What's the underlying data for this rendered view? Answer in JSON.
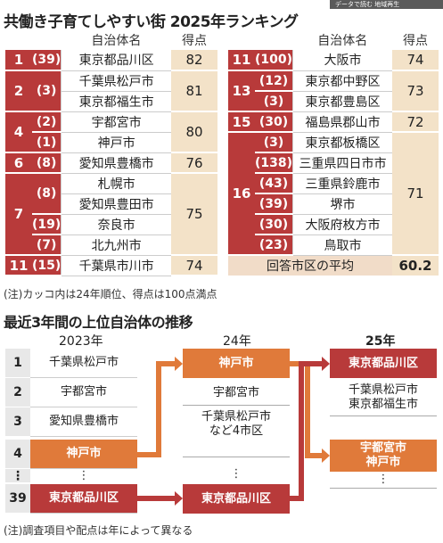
{
  "topbar": "データで読む 地域再生",
  "title": "共働き子育てしやすい街 2025年ランキング",
  "header": {
    "name": "自治体名",
    "score": "得点"
  },
  "left": [
    {
      "rank": "1",
      "prev": "(39)",
      "name": "東京都品川区",
      "score": "82"
    },
    {
      "rank": "2",
      "prev": "(3)",
      "name": "千葉県松戸市",
      "score": "81"
    },
    {
      "rank": "",
      "prev": "",
      "name": "東京都福生市",
      "score": ""
    },
    {
      "rank": "4",
      "prev": "(2)",
      "name": "宇都宮市",
      "score": "80"
    },
    {
      "rank": "",
      "prev": "(1)",
      "name": "神戸市",
      "score": ""
    },
    {
      "rank": "6",
      "prev": "(8)",
      "name": "愛知県豊橋市",
      "score": "76"
    },
    {
      "rank": "7",
      "prev": "(8)",
      "name": "札幌市",
      "score": "75"
    },
    {
      "rank": "",
      "prev": "",
      "name": "愛知県豊田市",
      "score": ""
    },
    {
      "rank": "",
      "prev": "(19)",
      "name": "奈良市",
      "score": ""
    },
    {
      "rank": "",
      "prev": "(7)",
      "name": "北九州市",
      "score": ""
    },
    {
      "rank": "11",
      "prev": "(15)",
      "name": "千葉県市川市",
      "score": "74"
    }
  ],
  "right": [
    {
      "rank": "11",
      "prev": "(100)",
      "name": "大阪市",
      "score": "74"
    },
    {
      "rank": "13",
      "prev": "(12)",
      "name": "東京都中野区",
      "score": "73"
    },
    {
      "rank": "",
      "prev": "(3)",
      "name": "東京都豊島区",
      "score": ""
    },
    {
      "rank": "15",
      "prev": "(30)",
      "name": "福島県郡山市",
      "score": "72"
    },
    {
      "rank": "16",
      "prev": "(3)",
      "name": "東京都板橋区",
      "score": "71"
    },
    {
      "rank": "",
      "prev": "(138)",
      "name": "三重県四日市市",
      "score": ""
    },
    {
      "rank": "",
      "prev": "(43)",
      "name": "三重県鈴鹿市",
      "score": ""
    },
    {
      "rank": "",
      "prev": "(39)",
      "name": "堺市",
      "score": ""
    },
    {
      "rank": "",
      "prev": "(30)",
      "name": "大阪府枚方市",
      "score": ""
    },
    {
      "rank": "",
      "prev": "(23)",
      "name": "鳥取市",
      "score": ""
    }
  ],
  "avg": {
    "label": "回答市区の平均",
    "value": "60.2"
  },
  "note1": "(注)カッコ内は24年順位、得点は100点満点",
  "section2": "最近3年間の上位自治体の推移",
  "years": {
    "y1": "2023年",
    "y2": "24年",
    "y3": "25年"
  },
  "col1": [
    {
      "n": "1",
      "t": "千葉県松戸市"
    },
    {
      "n": "2",
      "t": "宇都宮市"
    },
    {
      "n": "3",
      "t": "愛知県豊橋市"
    },
    {
      "n": "4",
      "t": "神戸市"
    },
    {
      "n": "⋮",
      "t": "⋮"
    },
    {
      "n": "39",
      "t": "東京都品川区"
    }
  ],
  "col2": {
    "top": "神戸市",
    "r2": "宇都宮市",
    "r3": "千葉県松戸市\nなど4市区",
    "dots": "⋮",
    "bottom": "東京都品川区"
  },
  "col3": {
    "top": "東京都品川区",
    "r2": "千葉県松戸市\n東京都福生市",
    "r3": "宇都宮市\n神戸市",
    "dots": "⋮"
  },
  "note2": "(注)調査項目や配点は年によって異なる"
}
